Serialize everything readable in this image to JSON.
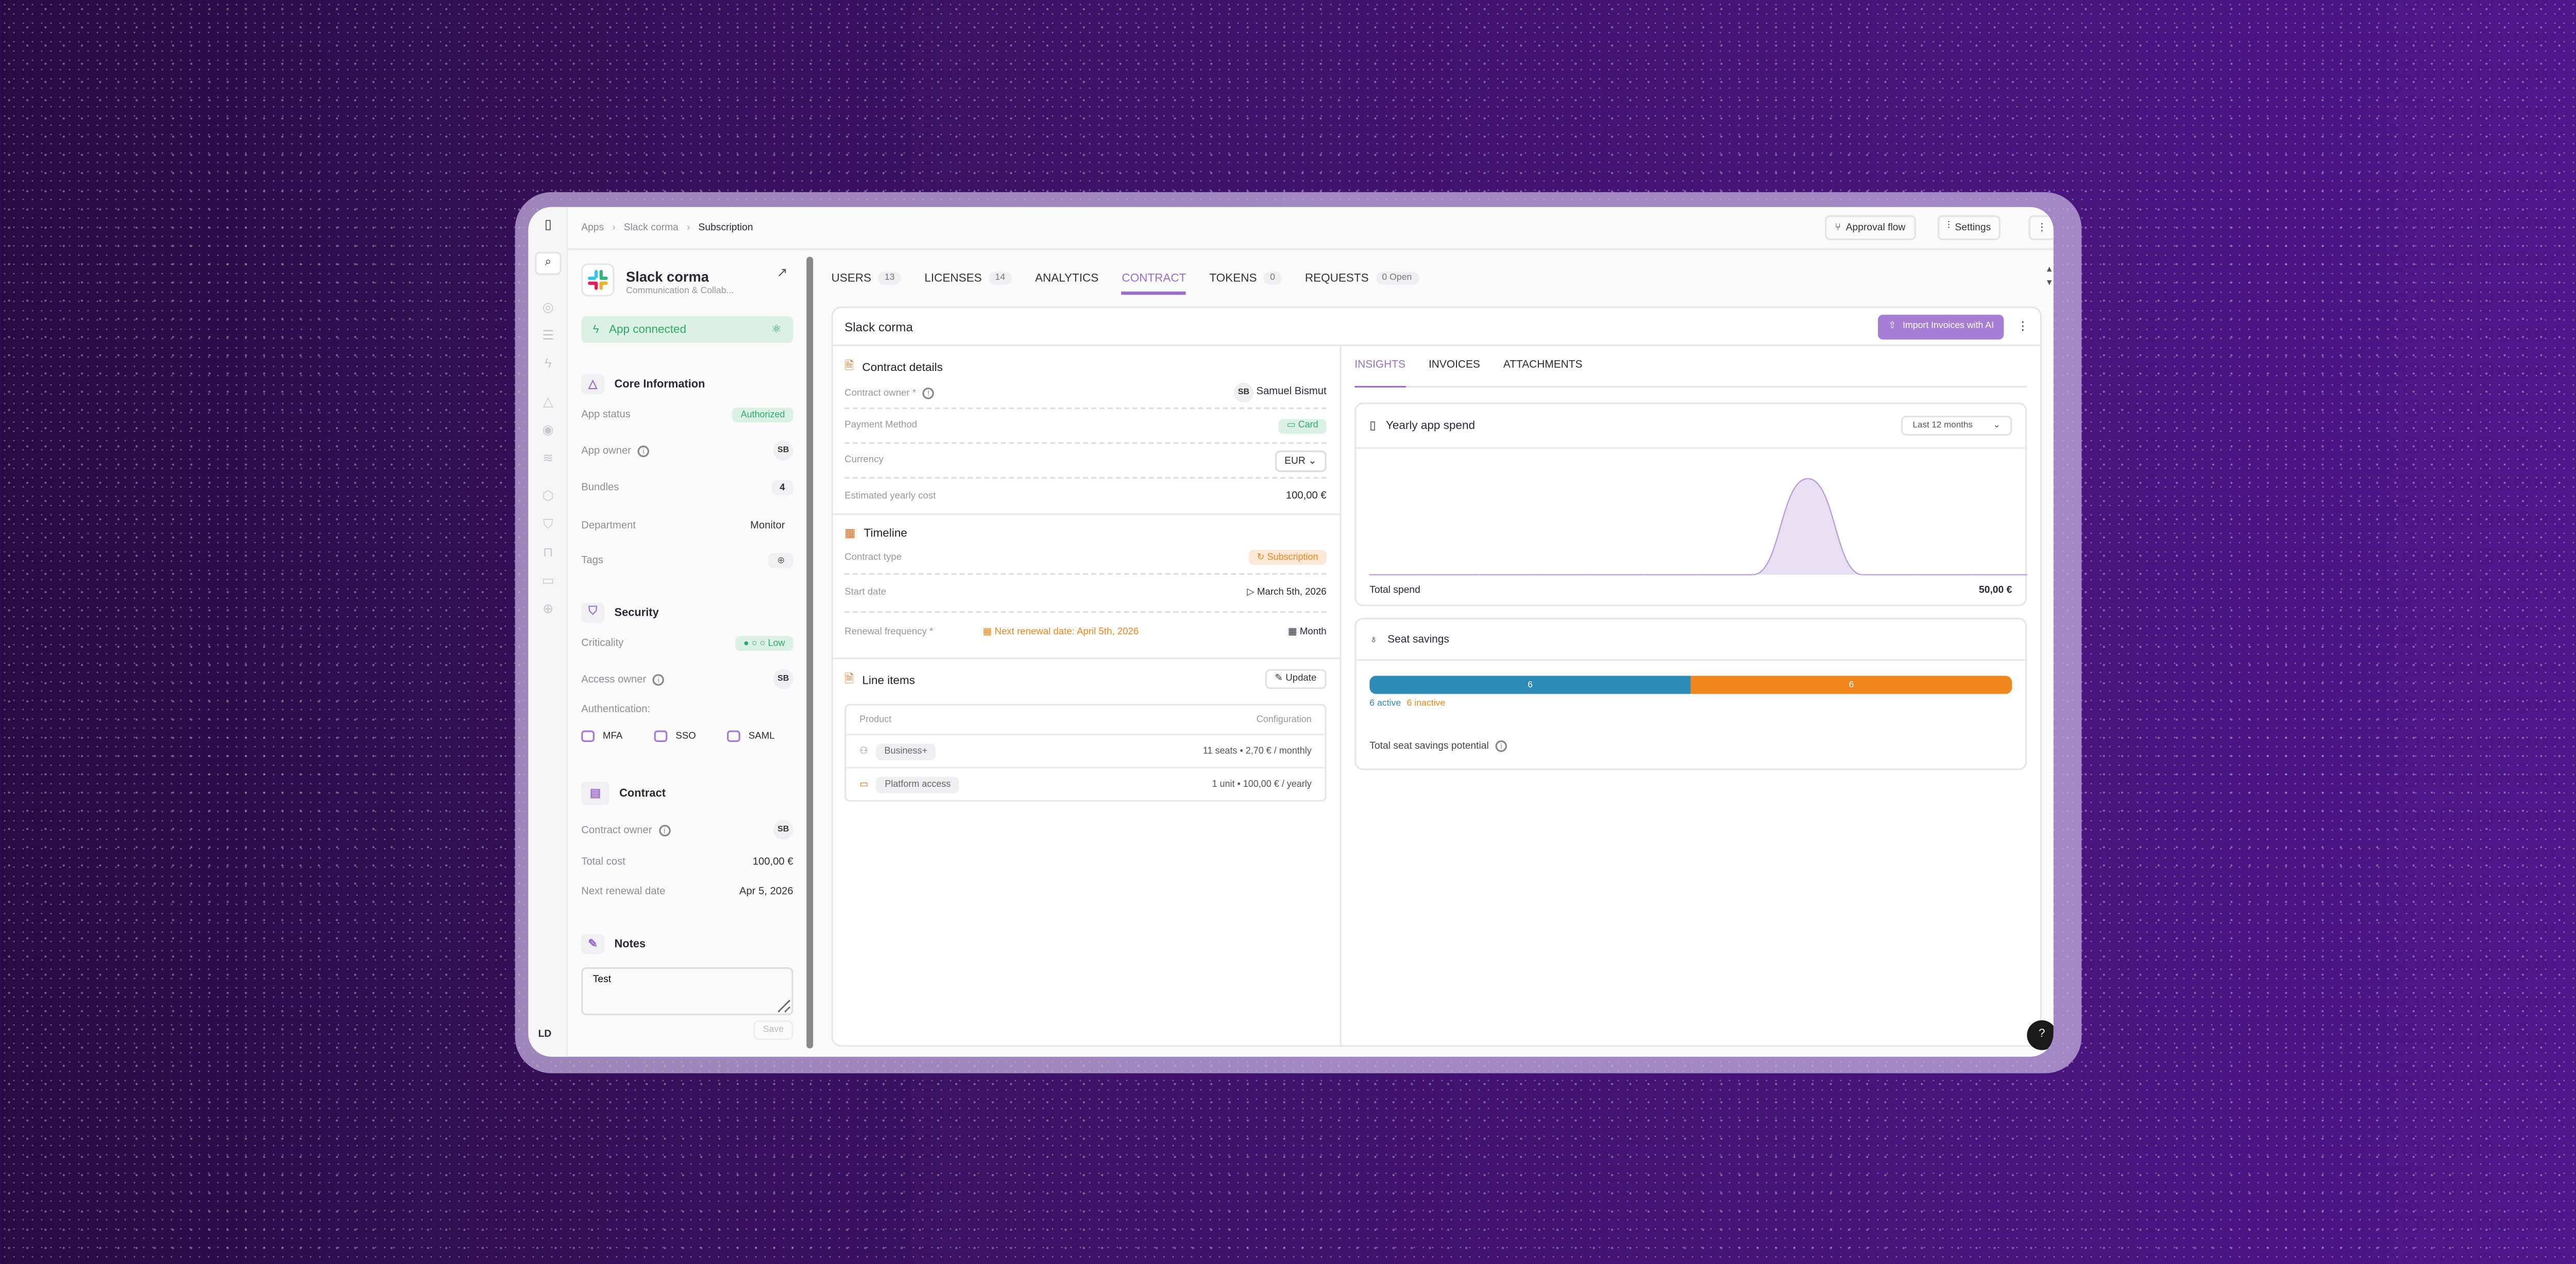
{
  "breadcrumb": [
    "Apps",
    "Slack corma",
    "Subscription"
  ],
  "topbar": {
    "approval_flow": "Approval flow",
    "settings": "Settings"
  },
  "user_initials": "LD",
  "app": {
    "name": "Slack corma",
    "category": "Communication & Collab...",
    "connected_label": "App connected"
  },
  "core": {
    "title": "Core Information",
    "app_status_label": "App status",
    "app_status": "Authorized",
    "app_owner_label": "App owner",
    "app_owner": "SB",
    "bundles_label": "Bundles",
    "bundles": "4",
    "department_label": "Department",
    "department": "Monitor",
    "tags_label": "Tags"
  },
  "security": {
    "title": "Security",
    "criticality_label": "Criticality",
    "criticality": "Low",
    "criticality_level": 1,
    "access_owner_label": "Access owner",
    "access_owner": "SB",
    "auth_label": "Authentication:",
    "auth": [
      "MFA",
      "SSO",
      "SAML"
    ]
  },
  "contract": {
    "title": "Contract",
    "owner_label": "Contract owner",
    "owner": "SB",
    "total_cost_label": "Total cost",
    "total_cost": "100,00 €",
    "renewal_label": "Next renewal date",
    "renewal": "Apr 5, 2026"
  },
  "notes": {
    "title": "Notes",
    "value": "Test",
    "save": "Save"
  },
  "tabs": [
    {
      "label": "USERS",
      "count": "13"
    },
    {
      "label": "LICENSES",
      "count": "14"
    },
    {
      "label": "ANALYTICS"
    },
    {
      "label": "CONTRACT",
      "active": true
    },
    {
      "label": "TOKENS",
      "count": "0"
    },
    {
      "label": "REQUESTS",
      "count": "0  Open"
    }
  ],
  "card": {
    "title": "Slack corma",
    "import_button": "Import Invoices with AI"
  },
  "details": {
    "title": "Contract details",
    "owner_label": "Contract owner *",
    "owner_initials": "SB",
    "owner_name": "Samuel Bismut",
    "payment_label": "Payment Method",
    "payment": "Card",
    "currency_label": "Currency",
    "currency": "EUR",
    "est_label": "Estimated yearly cost",
    "est": "100,00 €"
  },
  "timeline": {
    "title": "Timeline",
    "type_label": "Contract type",
    "type": "Subscription",
    "start_label": "Start date",
    "start": "March 5th, 2026",
    "freq_label": "Renewal frequency *",
    "next_renewal": "Next renewal date: April 5th, 2026",
    "freq": "Month"
  },
  "line_items": {
    "title": "Line items",
    "update": "Update",
    "col_product": "Product",
    "col_config": "Configuration",
    "rows": [
      {
        "product": "Business+",
        "config": "11 seats • 2,70 € / monthly"
      },
      {
        "product": "Platform access",
        "config": "1 unit • 100,00 € / yearly"
      }
    ]
  },
  "insights": {
    "tabs": [
      "INSIGHTS",
      "INVOICES",
      "ATTACHMENTS"
    ],
    "spend_title": "Yearly app spend",
    "range": "Last 12 months",
    "total_label": "Total spend",
    "total": "50,00 €",
    "seat_title": "Seat savings",
    "active": 6,
    "inactive": 6,
    "active_label": "6 active",
    "inactive_label": "6 inactive",
    "potential_label": "Total seat savings potential"
  },
  "colors": {
    "accent": "#9a6fcc",
    "active": "#2e8bb5",
    "inactive": "#f0871c",
    "green": "#2eaa6a",
    "orange": "#f06a1c"
  },
  "chart_data": {
    "type": "area",
    "title": "Yearly app spend",
    "x": [
      0,
      1,
      2,
      3,
      4,
      5,
      6,
      7,
      8,
      9,
      10,
      11,
      12
    ],
    "values": [
      0,
      0,
      0,
      0,
      0,
      0,
      0,
      0,
      50,
      0,
      0,
      0,
      0
    ],
    "ylim": [
      0,
      55
    ]
  }
}
